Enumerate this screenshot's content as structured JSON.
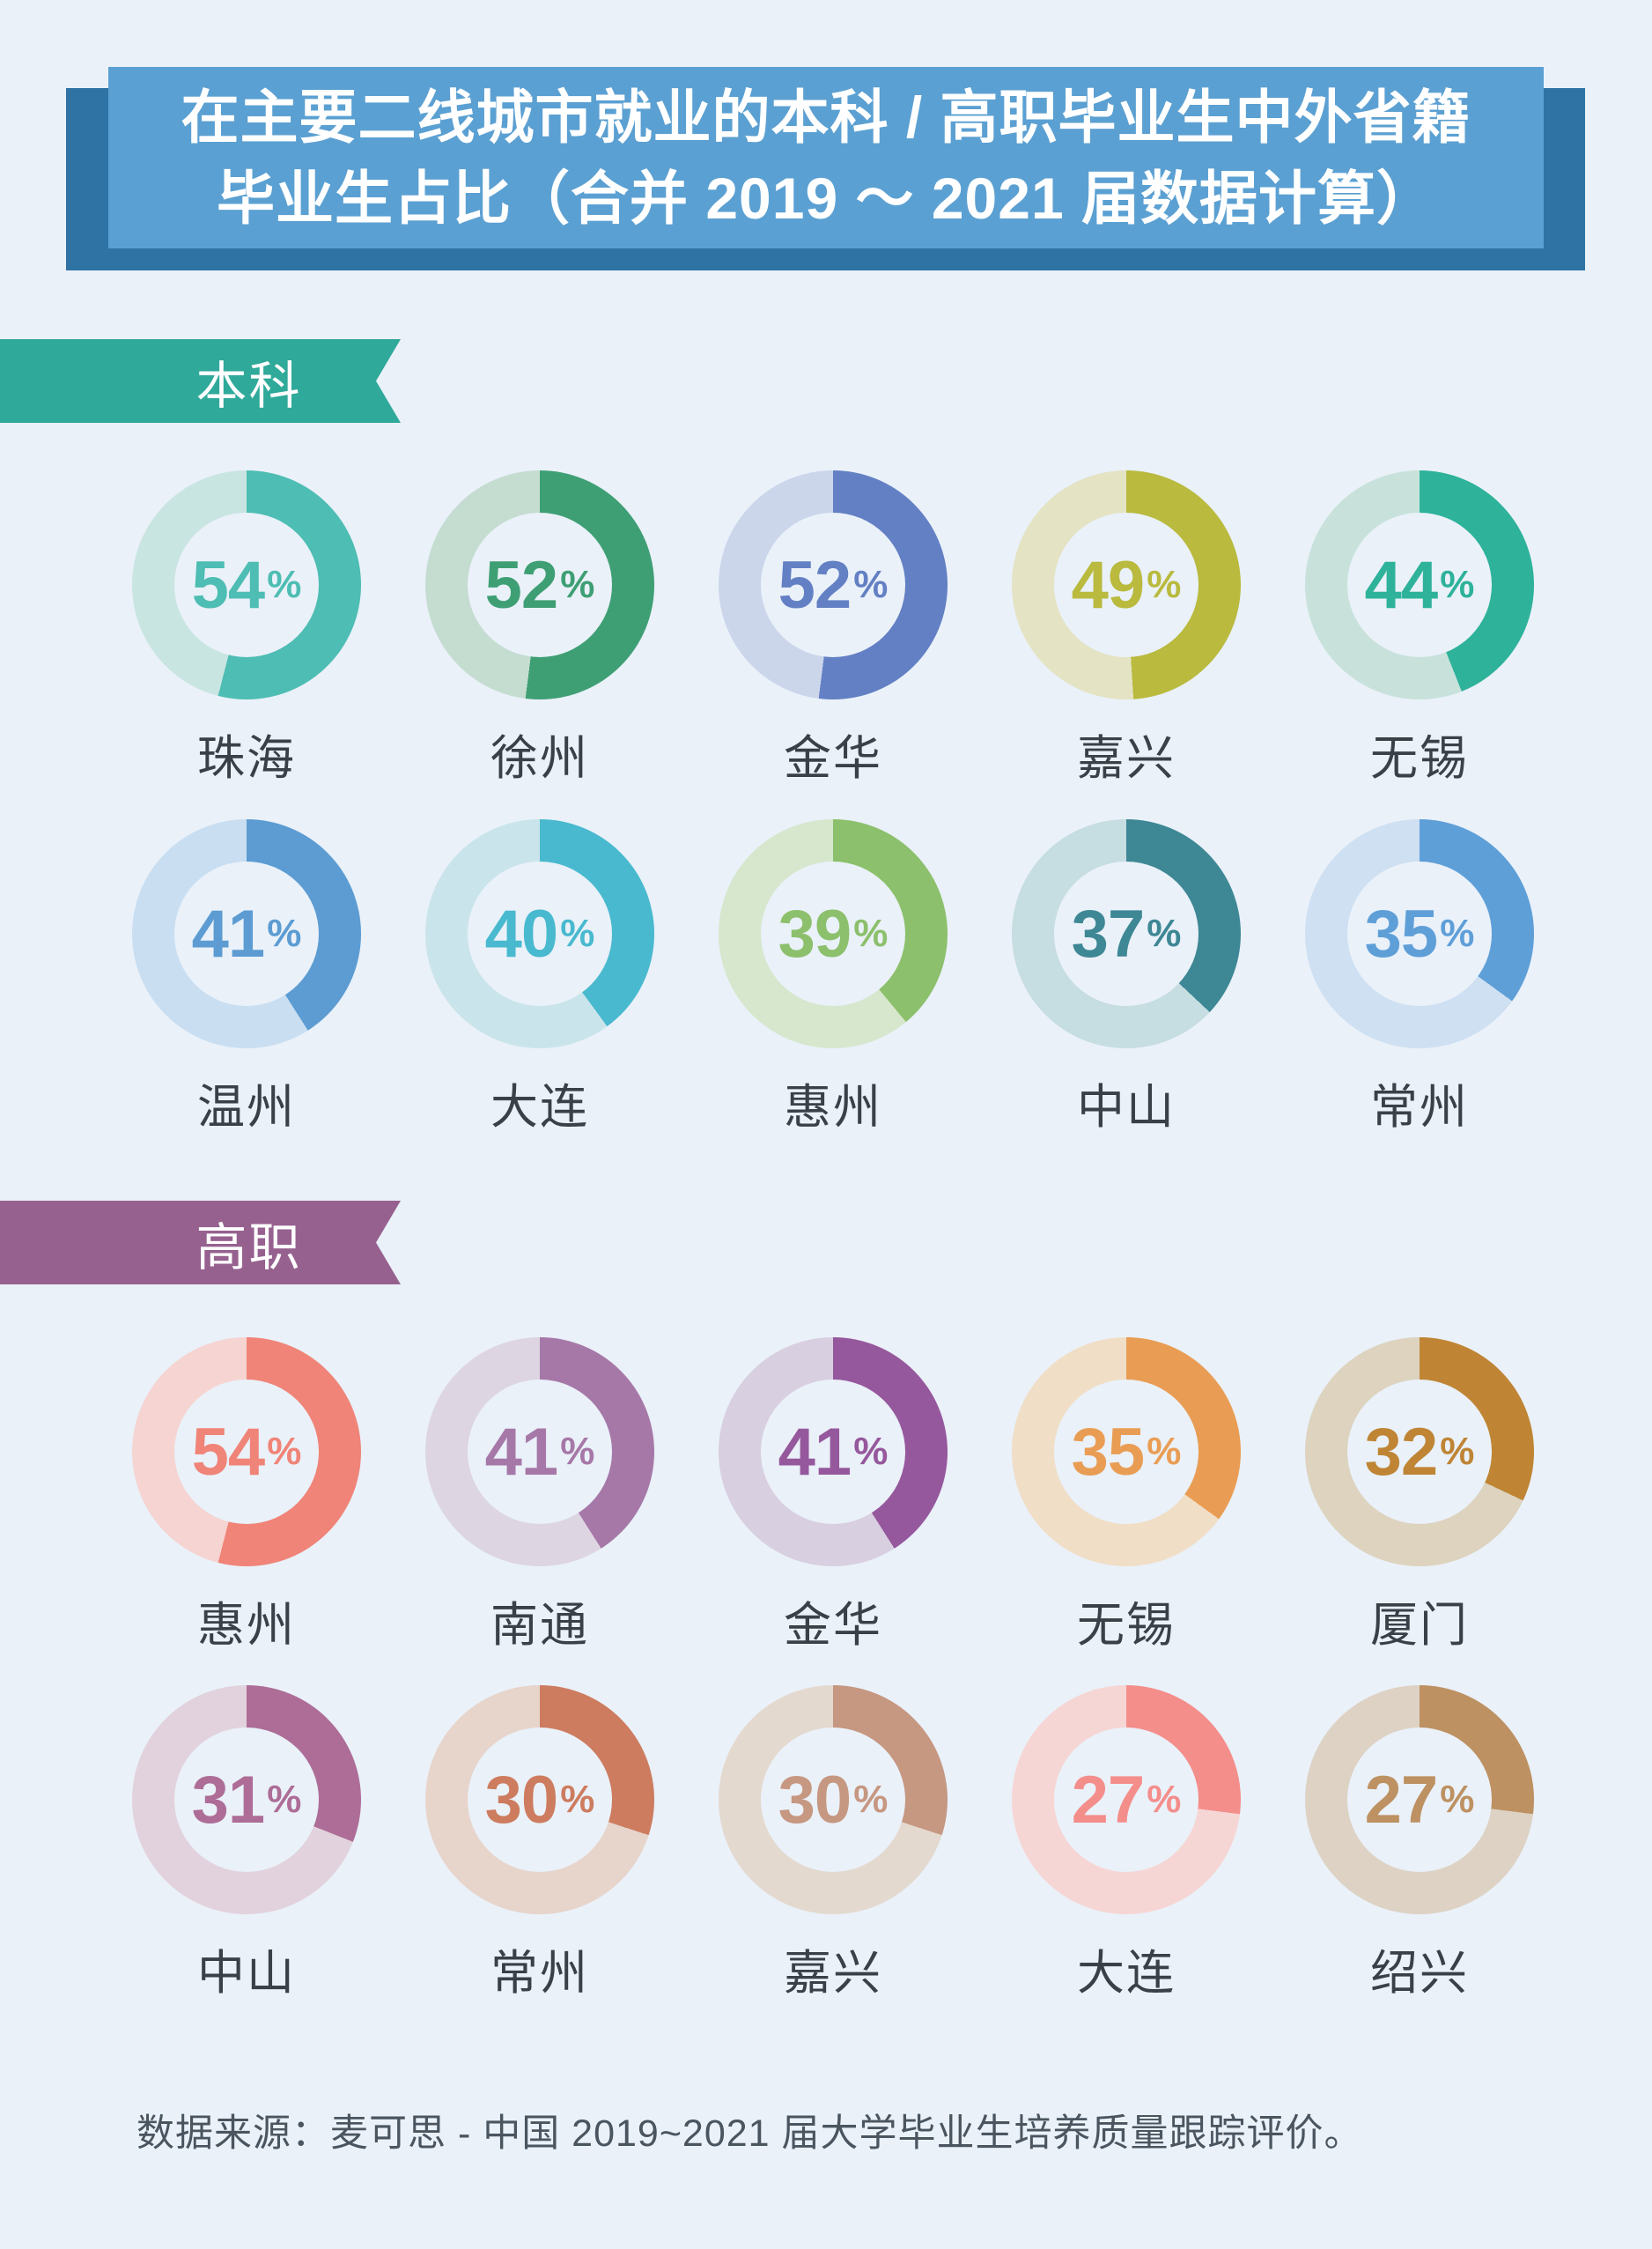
{
  "page": {
    "bg": "#EAF1F9"
  },
  "ui": {
    "percent_sign": "%"
  },
  "title": {
    "line1": "在主要二线城市就业的本科 / 高职毕业生中外省籍",
    "line2": "毕业生占比（合并 2019 ～ 2021 届数据计算）",
    "panel_color": "#5BA0D2",
    "shadow_color": "#2F73A4",
    "text_color": "#FFFFFF"
  },
  "sections": [
    {
      "id": "undergraduate",
      "label": "本科",
      "ribbon_color": "#2FA99A",
      "rows": [
        [
          {
            "city": "珠海",
            "value": 54,
            "color": "#4EBDB3",
            "track": "#C9E5E2"
          },
          {
            "city": "徐州",
            "value": 52,
            "color": "#3F9F74",
            "track": "#C5DDD1"
          },
          {
            "city": "金华",
            "value": 52,
            "color": "#6380C4",
            "track": "#CBD6EB"
          },
          {
            "city": "嘉兴",
            "value": 49,
            "color": "#B9BA3E",
            "track": "#E4E3C4"
          },
          {
            "city": "无锡",
            "value": 44,
            "color": "#2EB29A",
            "track": "#C8E2DB"
          }
        ],
        [
          {
            "city": "温州",
            "value": 41,
            "color": "#5C9CD2",
            "track": "#C9DEF1"
          },
          {
            "city": "大连",
            "value": 40,
            "color": "#49B9CF",
            "track": "#CAE4EB"
          },
          {
            "city": "惠州",
            "value": 39,
            "color": "#8CC06C",
            "track": "#D6E7CE"
          },
          {
            "city": "中山",
            "value": 37,
            "color": "#3E8795",
            "track": "#C6DDE1"
          },
          {
            "city": "常州",
            "value": 35,
            "color": "#5F9FD8",
            "track": "#CEE0F2"
          }
        ]
      ]
    },
    {
      "id": "vocational",
      "label": "高职",
      "ribbon_color": "#96618F",
      "rows": [
        [
          {
            "city": "惠州",
            "value": 54,
            "color": "#F08478",
            "track": "#F5D4D2"
          },
          {
            "city": "南通",
            "value": 41,
            "color": "#A678A8",
            "track": "#DDD5E2"
          },
          {
            "city": "金华",
            "value": 41,
            "color": "#96589C",
            "track": "#D8CFE0"
          },
          {
            "city": "无锡",
            "value": 35,
            "color": "#E99D54",
            "track": "#F0DEC7"
          },
          {
            "city": "厦门",
            "value": 32,
            "color": "#BF8535",
            "track": "#DDD3BF"
          }
        ],
        [
          {
            "city": "中山",
            "value": 31,
            "color": "#AD6D97",
            "track": "#E2D2DD"
          },
          {
            "city": "常州",
            "value": 30,
            "color": "#CD7C5F",
            "track": "#E7D4CB"
          },
          {
            "city": "嘉兴",
            "value": 30,
            "color": "#C69781",
            "track": "#E4D9CF"
          },
          {
            "city": "大连",
            "value": 27,
            "color": "#F48E8B",
            "track": "#F6D6D4"
          },
          {
            "city": "绍兴",
            "value": 27,
            "color": "#BD9162",
            "track": "#DDD2C4"
          }
        ]
      ]
    }
  ],
  "footer": {
    "text": "数据来源：麦可思 - 中国 2019~2021 届大学毕业生培养质量跟踪评价。"
  },
  "chart_data": [
    {
      "type": "pie",
      "subtype": "donut-grid",
      "title": "本科",
      "unit": "%",
      "categories": [
        "珠海",
        "徐州",
        "金华",
        "嘉兴",
        "无锡",
        "温州",
        "大连",
        "惠州",
        "中山",
        "常州"
      ],
      "values": [
        54,
        52,
        52,
        49,
        44,
        41,
        40,
        39,
        37,
        35
      ],
      "start_angle_deg": 0,
      "direction": "clockwise"
    },
    {
      "type": "pie",
      "subtype": "donut-grid",
      "title": "高职",
      "unit": "%",
      "categories": [
        "惠州",
        "南通",
        "金华",
        "无锡",
        "厦门",
        "中山",
        "常州",
        "嘉兴",
        "大连",
        "绍兴"
      ],
      "values": [
        54,
        41,
        41,
        35,
        32,
        31,
        30,
        30,
        27,
        27
      ],
      "start_angle_deg": 0,
      "direction": "clockwise"
    }
  ]
}
